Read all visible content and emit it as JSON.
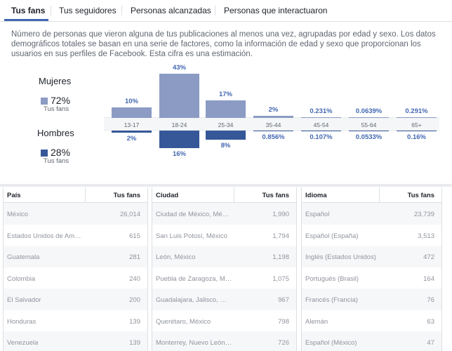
{
  "tabs": [
    {
      "label": "Tus fans",
      "active": true
    },
    {
      "label": "Tus seguidores"
    },
    {
      "label": "Personas alcanzadas"
    },
    {
      "label": "Personas que interactuaron"
    }
  ],
  "description": "Número de personas que vieron alguna de tus publicaciones al menos una vez, agrupadas por edad y sexo. Los datos demográficos totales se basan en una serie de factores, como la información de edad y sexo que proporcionan los usuarios en sus perfiles de Facebook. Esta cifra es una estimación.",
  "legend": {
    "women": {
      "title": "Mujeres",
      "percent": "72%",
      "sub": "Tus fans",
      "color": "#8c9bc4"
    },
    "men": {
      "title": "Hombres",
      "percent": "28%",
      "sub": "Tus fans",
      "color": "#365899"
    }
  },
  "demographics": {
    "age_groups": [
      "13-17",
      "18-24",
      "25-34",
      "35-44",
      "45-54",
      "55-64",
      "65+"
    ],
    "women_labels": [
      "10%",
      "43%",
      "17%",
      "2%",
      "0.231%",
      "0.0639%",
      "0.291%"
    ],
    "men_labels": [
      "2%",
      "16%",
      "8%",
      "0.856%",
      "0.107%",
      "0.0533%",
      "0.16%"
    ],
    "women_values": [
      10,
      43,
      17,
      2,
      0.231,
      0.0639,
      0.291
    ],
    "men_values": [
      2,
      16,
      8,
      0.856,
      0.107,
      0.0533,
      0.16
    ]
  },
  "tables": [
    {
      "header": "País",
      "value_header": "Tus fans",
      "rows": [
        {
          "name": "México",
          "value": "26,014"
        },
        {
          "name": "Estados Unidos de Am…",
          "value": "615"
        },
        {
          "name": "Guatemala",
          "value": "281"
        },
        {
          "name": "Colombia",
          "value": "240"
        },
        {
          "name": "El Salvador",
          "value": "200"
        },
        {
          "name": "Honduras",
          "value": "139"
        },
        {
          "name": "Venezuela",
          "value": "139"
        }
      ]
    },
    {
      "header": "Ciudad",
      "value_header": "Tus fans",
      "rows": [
        {
          "name": "Ciudad de México, Mé…",
          "value": "1,990"
        },
        {
          "name": "San Luis Potosí, México",
          "value": "1,794"
        },
        {
          "name": "León, México",
          "value": "1,198"
        },
        {
          "name": "Puebla de Zaragoza, M…",
          "value": "1,075"
        },
        {
          "name": "Guadalajara, Jalisco, …",
          "value": "967"
        },
        {
          "name": "Querétaro, México",
          "value": "798"
        },
        {
          "name": "Monterrey, Nuevo León…",
          "value": "726"
        }
      ]
    },
    {
      "header": "Idioma",
      "value_header": "Tus fans",
      "rows": [
        {
          "name": "Español",
          "value": "23,739"
        },
        {
          "name": "Español (España)",
          "value": "3,513"
        },
        {
          "name": "Inglés (Estados Unidos)",
          "value": "472"
        },
        {
          "name": "Portugués (Brasil)",
          "value": "164"
        },
        {
          "name": "Francés (Francia)",
          "value": "76"
        },
        {
          "name": "Alemán",
          "value": "63"
        },
        {
          "name": "Español (México)",
          "value": "47"
        }
      ]
    }
  ]
}
